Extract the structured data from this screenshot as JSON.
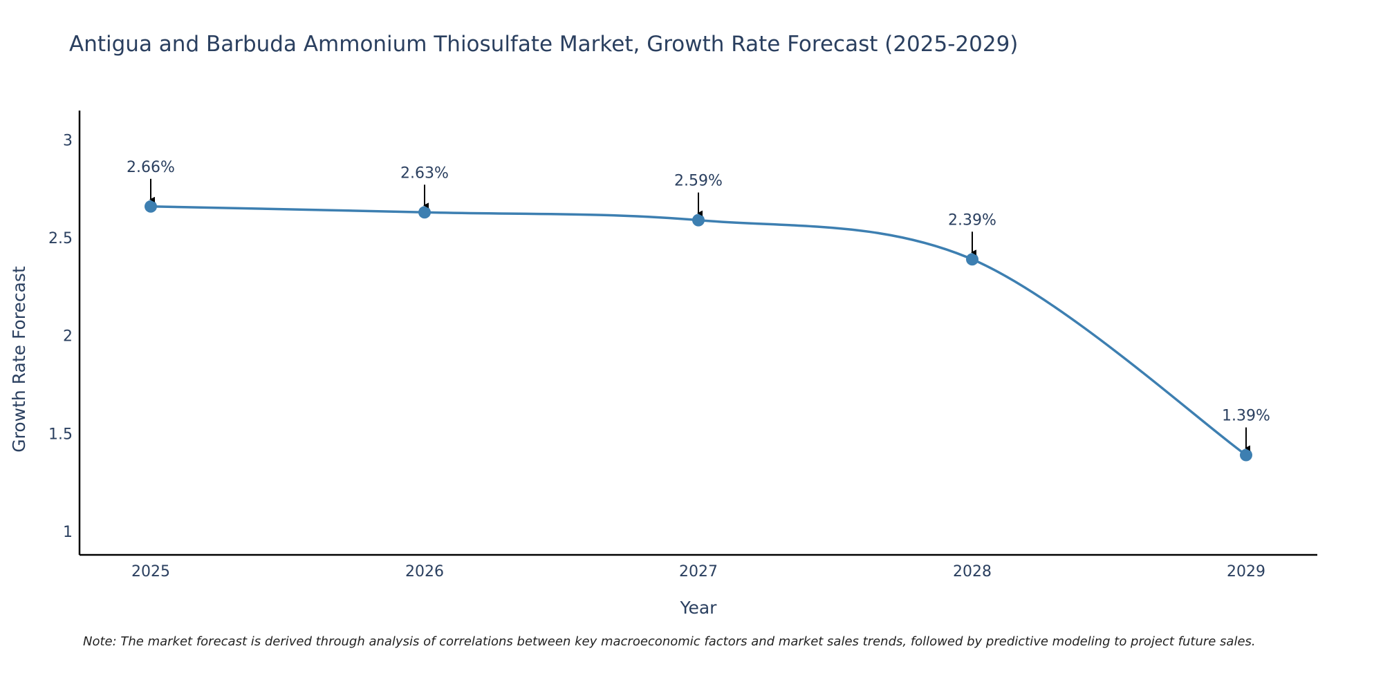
{
  "chart_data": {
    "type": "line",
    "title": "Antigua and Barbuda Ammonium Thiosulfate Market, Growth Rate Forecast (2025-2029)",
    "xlabel": "Year",
    "ylabel": "Growth Rate Forecast",
    "categories": [
      "2025",
      "2026",
      "2027",
      "2028",
      "2029"
    ],
    "values": [
      2.66,
      2.63,
      2.59,
      2.39,
      1.39
    ],
    "data_labels": [
      "2.66%",
      "2.63%",
      "2.59%",
      "2.39%",
      "1.39%"
    ],
    "ylim": [
      0.88,
      3.15
    ],
    "yticks": [
      1,
      1.5,
      2,
      2.5,
      3
    ],
    "ytick_labels": [
      "1",
      "1.5",
      "2",
      "2.5",
      "3"
    ],
    "grid": false,
    "line_color": "#3d7fb1",
    "marker_color": "#3d7fb1",
    "annotation_color": "#000000",
    "note": "Note: The market forecast is derived through analysis of correlations between key macroeconomic factors and market sales trends, followed by predictive modeling to project future sales."
  }
}
